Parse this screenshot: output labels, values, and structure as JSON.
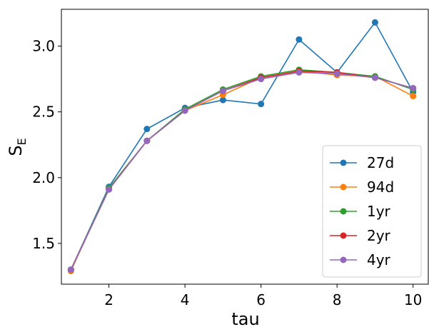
{
  "chart_data": {
    "type": "line",
    "xlabel": "tau",
    "ylabel_main": "S",
    "ylabel_sub": "E",
    "xlim": [
      0.75,
      10.4
    ],
    "ylim": [
      1.19,
      3.28
    ],
    "xticks": [
      2,
      4,
      6,
      8,
      10
    ],
    "xtick_labels": [
      "2",
      "4",
      "6",
      "8",
      "10"
    ],
    "yticks": [
      1.5,
      2.0,
      2.5,
      3.0
    ],
    "ytick_labels": [
      "1.5",
      "2.0",
      "2.5",
      "3.0"
    ],
    "grid": false,
    "legend_position": "lower-right",
    "x": [
      1,
      2,
      3,
      4,
      5,
      6,
      7,
      8,
      9,
      10
    ],
    "series": [
      {
        "name": "27d",
        "color": "#1f77b4",
        "values": [
          1.3,
          1.93,
          2.37,
          2.53,
          2.59,
          2.56,
          3.05,
          2.8,
          3.18,
          2.65
        ]
      },
      {
        "name": "94d",
        "color": "#ff7f0e",
        "values": [
          1.29,
          1.92,
          2.28,
          2.51,
          2.63,
          2.76,
          2.81,
          2.78,
          2.77,
          2.62
        ]
      },
      {
        "name": "1yr",
        "color": "#2ca02c",
        "values": [
          1.3,
          1.92,
          2.28,
          2.52,
          2.67,
          2.77,
          2.82,
          2.8,
          2.77,
          2.67
        ]
      },
      {
        "name": "2yr",
        "color": "#d62728",
        "values": [
          1.3,
          1.91,
          2.28,
          2.51,
          2.66,
          2.76,
          2.81,
          2.8,
          2.76,
          2.68
        ]
      },
      {
        "name": "4yr",
        "color": "#9467bd",
        "values": [
          1.3,
          1.91,
          2.28,
          2.51,
          2.66,
          2.75,
          2.8,
          2.79,
          2.76,
          2.68
        ]
      }
    ]
  }
}
